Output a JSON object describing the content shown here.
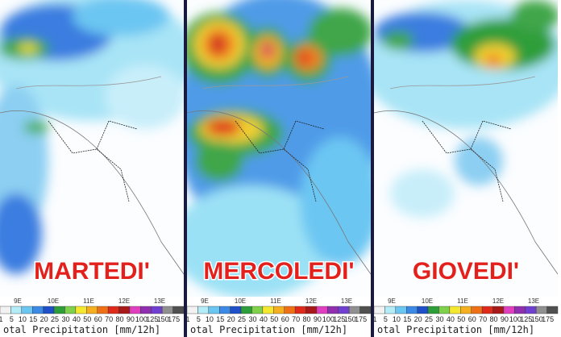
{
  "panels": [
    {
      "label": "MARTEDI'"
    },
    {
      "label": "MERCOLEDI'"
    },
    {
      "label": "GIOVEDI'"
    }
  ],
  "longitudes": [
    "9E",
    "10E",
    "11E",
    "12E",
    "13E"
  ],
  "legend": {
    "labels": [
      1,
      5,
      10,
      15,
      20,
      25,
      30,
      40,
      50,
      60,
      70,
      80,
      90,
      100,
      125,
      150,
      175
    ],
    "colors": [
      "#f2f2f2",
      "#b4ecf8",
      "#6cc6f2",
      "#3a8ae6",
      "#1f50c8",
      "#2e9e3a",
      "#7fd04a",
      "#f4e830",
      "#f4b020",
      "#f07018",
      "#e02a1a",
      "#a81a1a",
      "#e040c0",
      "#9030b0",
      "#7040d0",
      "#909090",
      "#505050"
    ],
    "caption": "otal Precipitation [mm/12h]"
  }
}
